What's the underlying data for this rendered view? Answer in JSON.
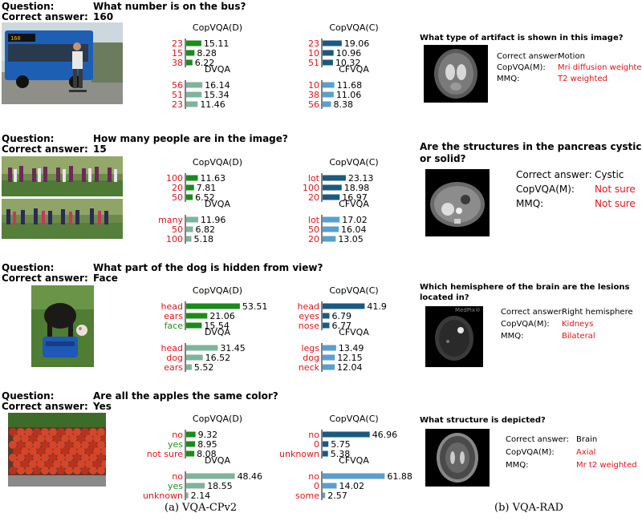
{
  "colors": {
    "green": "#1c8a1c",
    "sage": "#7fb39c",
    "navy": "#1b5a7e",
    "sky": "#5b9fcb",
    "red": "#e0141e",
    "green_label": "#1f8e1f"
  },
  "labels": {
    "question": "Question:",
    "correct_answer": "Correct answer:",
    "rad_correct": "Correct answer:",
    "rad_copvqa": "CopVQA(M):",
    "rad_mmq": "MMQ:"
  },
  "captions": {
    "a": "(a) VQA-CPv2",
    "b": "(b) VQA-RAD"
  },
  "cp": [
    {
      "question": "What number is on the bus?",
      "answer": "160",
      "chart_data": {
        "type": "bar",
        "panels": [
          {
            "title": "CopVQA(D)",
            "color": "green",
            "rows": [
              {
                "label": "23",
                "value": 15.11,
                "correct": false
              },
              {
                "label": "15",
                "value": 8.28,
                "correct": false
              },
              {
                "label": "38",
                "value": 6.22,
                "correct": false
              }
            ]
          },
          {
            "title": "CopVQA(C)",
            "color": "navy",
            "rows": [
              {
                "label": "23",
                "value": 19.06,
                "correct": false
              },
              {
                "label": "10",
                "value": 10.96,
                "correct": false
              },
              {
                "label": "51",
                "value": 10.32,
                "correct": false
              }
            ]
          },
          {
            "title": "DVQA",
            "color": "sage",
            "rows": [
              {
                "label": "56",
                "value": 16.14,
                "correct": false
              },
              {
                "label": "51",
                "value": 15.34,
                "correct": false
              },
              {
                "label": "23",
                "value": 11.46,
                "correct": false
              }
            ]
          },
          {
            "title": "CFVQA",
            "color": "sky",
            "rows": [
              {
                "label": "10",
                "value": 11.68,
                "correct": false
              },
              {
                "label": "38",
                "value": 11.06,
                "correct": false
              },
              {
                "label": "56",
                "value": 8.38,
                "correct": false
              }
            ]
          }
        ]
      }
    },
    {
      "question": "How many people are in the image?",
      "answer": "15",
      "chart_data": {
        "type": "bar",
        "panels": [
          {
            "title": "CopVQA(D)",
            "color": "green",
            "rows": [
              {
                "label": "100",
                "value": 11.63,
                "correct": false
              },
              {
                "label": "20",
                "value": 7.81,
                "correct": false
              },
              {
                "label": "50",
                "value": 6.52,
                "correct": false
              }
            ]
          },
          {
            "title": "CopVQA(C)",
            "color": "navy",
            "rows": [
              {
                "label": "lot",
                "value": 23.13,
                "correct": false
              },
              {
                "label": "100",
                "value": 18.98,
                "correct": false
              },
              {
                "label": "20",
                "value": 16.97,
                "correct": false
              }
            ]
          },
          {
            "title": "DVQA",
            "color": "sage",
            "rows": [
              {
                "label": "many",
                "value": 11.96,
                "correct": false
              },
              {
                "label": "50",
                "value": 6.82,
                "correct": false
              },
              {
                "label": "100",
                "value": 5.18,
                "correct": false
              }
            ]
          },
          {
            "title": "CFVQA",
            "color": "sky",
            "rows": [
              {
                "label": "lot",
                "value": 17.02,
                "correct": false
              },
              {
                "label": "50",
                "value": 16.04,
                "correct": false
              },
              {
                "label": "20",
                "value": 13.05,
                "correct": false
              }
            ]
          }
        ]
      }
    },
    {
      "question": "What part of the dog is hidden from view?",
      "answer": "Face",
      "chart_data": {
        "type": "bar",
        "panels": [
          {
            "title": "CopVQA(D)",
            "color": "green",
            "rows": [
              {
                "label": "head",
                "value": 53.51,
                "correct": false
              },
              {
                "label": "ears",
                "value": 21.06,
                "correct": false
              },
              {
                "label": "face",
                "value": 15.54,
                "correct": true
              }
            ]
          },
          {
            "title": "CopVQA(C)",
            "color": "navy",
            "rows": [
              {
                "label": "head",
                "value": 41.9,
                "correct": false
              },
              {
                "label": "eyes",
                "value": 6.79,
                "correct": false
              },
              {
                "label": "nose",
                "value": 6.77,
                "correct": false
              }
            ]
          },
          {
            "title": "DVQA",
            "color": "sage",
            "rows": [
              {
                "label": "head",
                "value": 31.45,
                "correct": false
              },
              {
                "label": "dog",
                "value": 16.52,
                "correct": false
              },
              {
                "label": "ears",
                "value": 5.52,
                "correct": false
              }
            ]
          },
          {
            "title": "CFVQA",
            "color": "sky",
            "rows": [
              {
                "label": "legs",
                "value": 13.49,
                "correct": false
              },
              {
                "label": "dog",
                "value": 12.15,
                "correct": false
              },
              {
                "label": "neck",
                "value": 12.04,
                "correct": false
              }
            ]
          }
        ]
      }
    },
    {
      "question": "Are all the apples the same color?",
      "answer": "Yes",
      "chart_data": {
        "type": "bar",
        "panels": [
          {
            "title": "CopVQA(D)",
            "color": "green",
            "rows": [
              {
                "label": "no",
                "value": 9.32,
                "correct": false
              },
              {
                "label": "yes",
                "value": 8.95,
                "correct": true
              },
              {
                "label": "not sure",
                "value": 8.08,
                "correct": false
              }
            ]
          },
          {
            "title": "CopVQA(C)",
            "color": "navy",
            "rows": [
              {
                "label": "no",
                "value": 46.96,
                "correct": false
              },
              {
                "label": "0",
                "value": 5.75,
                "correct": false
              },
              {
                "label": "unknown",
                "value": 5.38,
                "correct": false
              }
            ]
          },
          {
            "title": "DVQA",
            "color": "sage",
            "rows": [
              {
                "label": "no",
                "value": 48.46,
                "correct": false
              },
              {
                "label": "yes",
                "value": 18.55,
                "correct": true
              },
              {
                "label": "unknown",
                "value": 2.14,
                "correct": false
              }
            ]
          },
          {
            "title": "CFVQA",
            "color": "sky",
            "rows": [
              {
                "label": "no",
                "value": 61.88,
                "correct": false
              },
              {
                "label": "0",
                "value": 14.02,
                "correct": false
              },
              {
                "label": "some",
                "value": 2.57,
                "correct": false
              }
            ]
          }
        ]
      }
    }
  ],
  "rad": [
    {
      "question_lines": [
        "What type of artifact is shown in this image?"
      ],
      "correct": "Motion",
      "copvqa": "Mri diffusion weighted",
      "mmq": "T2 weighted"
    },
    {
      "question_lines": [
        "Are the structures in the pancreas cystic",
        "or solid?"
      ],
      "correct": "Cystic",
      "copvqa": "Not sure",
      "mmq": "Not sure"
    },
    {
      "question_lines": [
        "Which hemisphere of the brain are the lesions",
        "located in?"
      ],
      "correct": "Right hemisphere",
      "copvqa": "Kidneys",
      "mmq": "Bilateral",
      "watermark": "MedPix®"
    },
    {
      "question_lines": [
        "What structure is depicted?"
      ],
      "correct": "Brain",
      "copvqa": "Axial",
      "mmq": "Mr t2 weighted"
    }
  ]
}
